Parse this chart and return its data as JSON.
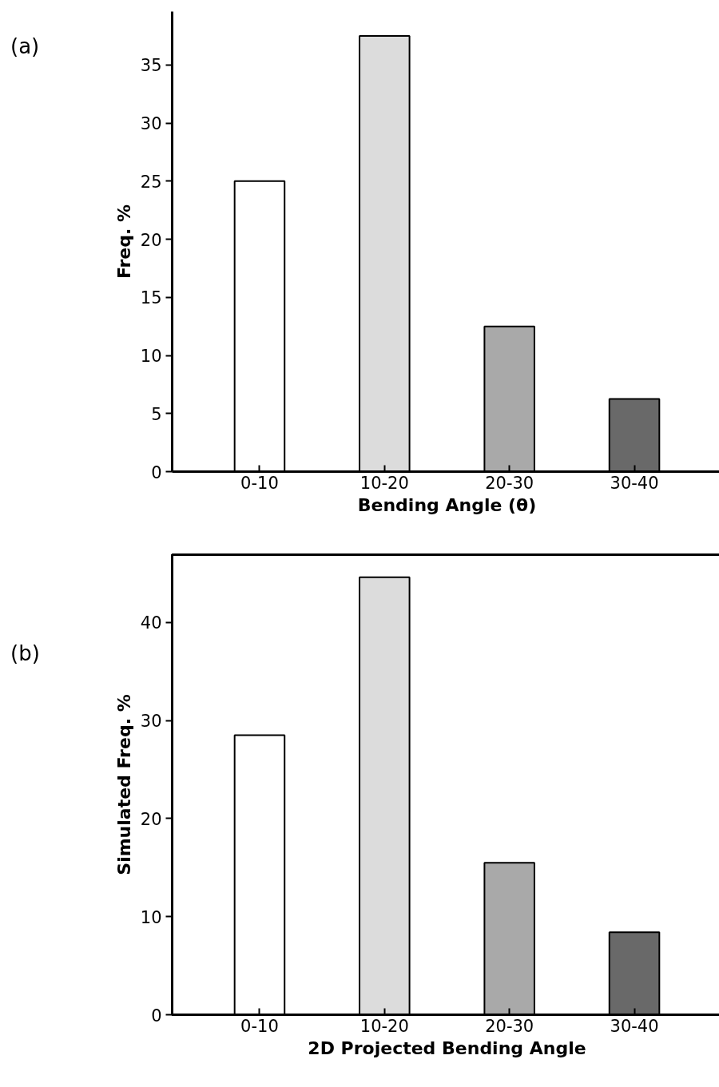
{
  "chart_data": [
    {
      "type": "bar",
      "xlabel": "Bending Angle (θ)",
      "ylabel": "Freq. %",
      "categories": [
        "0-10",
        "10-20",
        "20-30",
        "30-40"
      ],
      "values": [
        25,
        37.5,
        12.5,
        6.25
      ],
      "colors": [
        "#ffffff",
        "#dcdcdc",
        "#a9a9a9",
        "#696969"
      ],
      "ylim": [
        0,
        39.6
      ],
      "yticks": [
        0,
        5,
        10,
        15,
        20,
        25,
        30,
        35
      ],
      "grid": false,
      "annotations": [
        "(a)"
      ]
    },
    {
      "type": "bar",
      "xlabel": "2D Projected Bending Angle",
      "ylabel": "Simulated Freq. %",
      "categories": [
        "0-10",
        "10-20",
        "20-30",
        "30-40"
      ],
      "values": [
        28.5,
        44.6,
        15.5,
        8.4
      ],
      "colors": [
        "#ffffff",
        "#dcdcdc",
        "#a9a9a9",
        "#696969"
      ],
      "ylim": [
        0,
        46.9
      ],
      "yticks": [
        0,
        10,
        20,
        30,
        40
      ],
      "grid": false,
      "annotations": [
        "(b)"
      ]
    }
  ]
}
